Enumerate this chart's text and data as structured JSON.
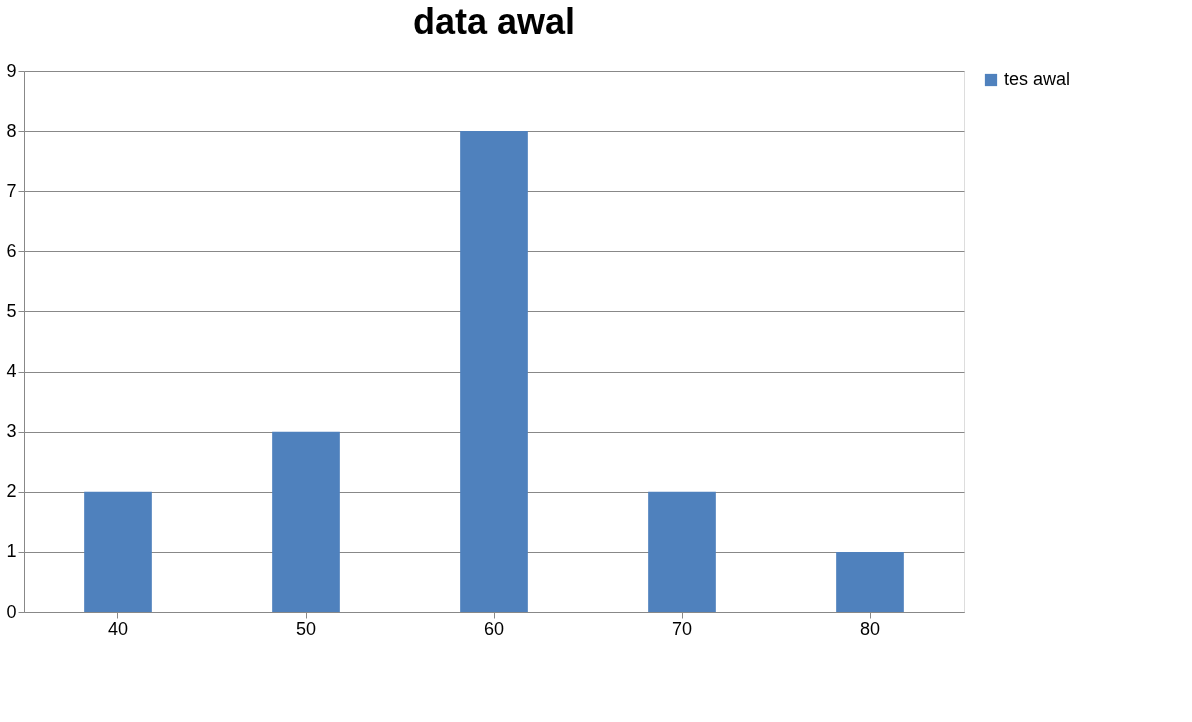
{
  "chart_data": {
    "type": "bar",
    "title": "data awal",
    "categories": [
      "40",
      "50",
      "60",
      "70",
      "80"
    ],
    "series": [
      {
        "name": "tes awal",
        "color": "#4f81bd",
        "values": [
          2,
          3,
          8,
          2,
          1
        ]
      }
    ],
    "ylim": [
      0,
      9
    ],
    "yticks": [
      0,
      1,
      2,
      3,
      4,
      5,
      6,
      7,
      8,
      9
    ],
    "grid": "y",
    "legend": "right"
  }
}
